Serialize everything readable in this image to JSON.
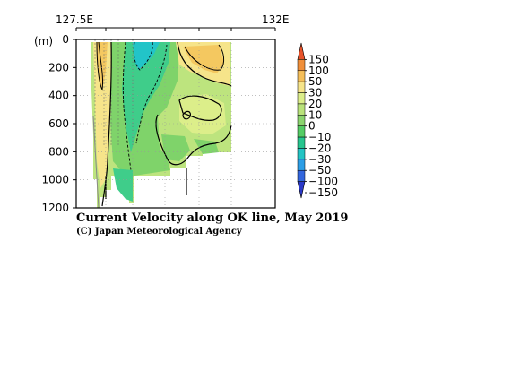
{
  "chart_data": {
    "type": "heatmap",
    "title": "Current Velocity along OK line, May 2019",
    "credit": "(C) Japan Meteorological Agency",
    "ylabel": "(m)",
    "top_axis": {
      "left_label": "127.5E",
      "right_label": "132E"
    },
    "y_ticks": [
      "0",
      "200",
      "400",
      "600",
      "800",
      "1000",
      "1200"
    ],
    "y_tick_values": [
      0,
      200,
      400,
      600,
      800,
      1000,
      1200
    ],
    "ylim": [
      1200,
      0
    ],
    "colorbar": {
      "labels": [
        "150",
        "100",
        "50",
        "30",
        "20",
        "10",
        "0",
        "−10",
        "−20",
        "−30",
        "−50",
        "−100",
        "−150"
      ],
      "values": [
        150,
        100,
        50,
        30,
        20,
        10,
        0,
        -10,
        -20,
        -30,
        -50,
        -100,
        -150
      ],
      "colors": [
        "#e8532a",
        "#f08f3a",
        "#f5bf5a",
        "#f6e48a",
        "#dcee8a",
        "#b9e27a",
        "#8bd46e",
        "#54cc64",
        "#26c58e",
        "#23c4c4",
        "#2c9ee6",
        "#3366dd",
        "#2a38c8"
      ]
    },
    "colors": {
      "eastward_strong": "#f4c860",
      "eastward_weak": "#f6e48a",
      "near_zero": "#bde47e",
      "westward_weak": "#7fd36a",
      "westward": "#3fcd8a",
      "westward_strong": "#22c4c8"
    },
    "grid": "dotted"
  }
}
